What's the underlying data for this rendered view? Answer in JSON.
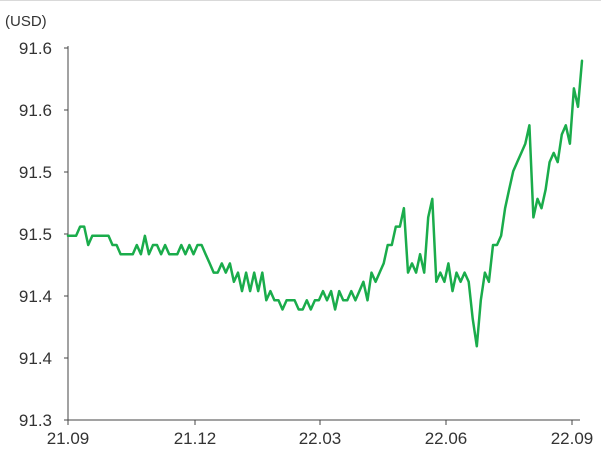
{
  "chart_data": {
    "type": "line",
    "unit_label": "(USD)",
    "title": "",
    "xlabel": "",
    "ylabel": "(USD)",
    "grid": false,
    "y_tick_labels": [
      "91.6",
      "91.6",
      "91.5",
      "91.5",
      "91.4",
      "91.4",
      "91.3"
    ],
    "x_tick_labels": [
      "21.09",
      "21.12",
      "22.03",
      "22.06",
      "22.09"
    ],
    "line_color": "#1aac4b",
    "axis_color": "#444444",
    "series": [
      {
        "values": [
          91.5,
          91.5,
          91.5,
          91.51,
          91.51,
          91.49,
          91.5,
          91.5,
          91.5,
          91.5,
          91.5,
          91.49,
          91.49,
          91.48,
          91.48,
          91.48,
          91.48,
          91.49,
          91.48,
          91.5,
          91.48,
          91.49,
          91.49,
          91.48,
          91.49,
          91.48,
          91.48,
          91.48,
          91.49,
          91.48,
          91.49,
          91.48,
          91.49,
          91.49,
          91.48,
          91.47,
          91.46,
          91.46,
          91.47,
          91.46,
          91.47,
          91.45,
          91.46,
          91.44,
          91.46,
          91.44,
          91.46,
          91.44,
          91.46,
          91.43,
          91.44,
          91.43,
          91.43,
          91.42,
          91.43,
          91.43,
          91.43,
          91.42,
          91.42,
          91.43,
          91.42,
          91.43,
          91.43,
          91.44,
          91.43,
          91.44,
          91.42,
          91.44,
          91.43,
          91.43,
          91.44,
          91.43,
          91.44,
          91.45,
          91.43,
          91.46,
          91.45,
          91.46,
          91.47,
          91.49,
          91.49,
          91.51,
          91.51,
          91.53,
          91.46,
          91.47,
          91.46,
          91.48,
          91.46,
          91.52,
          91.54,
          91.45,
          91.46,
          91.45,
          91.47,
          91.44,
          91.46,
          91.45,
          91.46,
          91.45,
          91.41,
          91.38,
          91.43,
          91.46,
          91.45,
          91.49,
          91.49,
          91.5,
          91.53,
          91.55,
          91.57,
          91.58,
          91.59,
          91.6,
          91.62,
          91.52,
          91.54,
          91.53,
          91.55,
          91.58,
          91.59,
          91.58,
          91.61,
          91.62,
          91.6,
          91.66,
          91.64,
          91.69
        ]
      }
    ],
    "xlim": [
      0,
      127
    ],
    "ylim": [
      91.3,
      91.68
    ]
  }
}
